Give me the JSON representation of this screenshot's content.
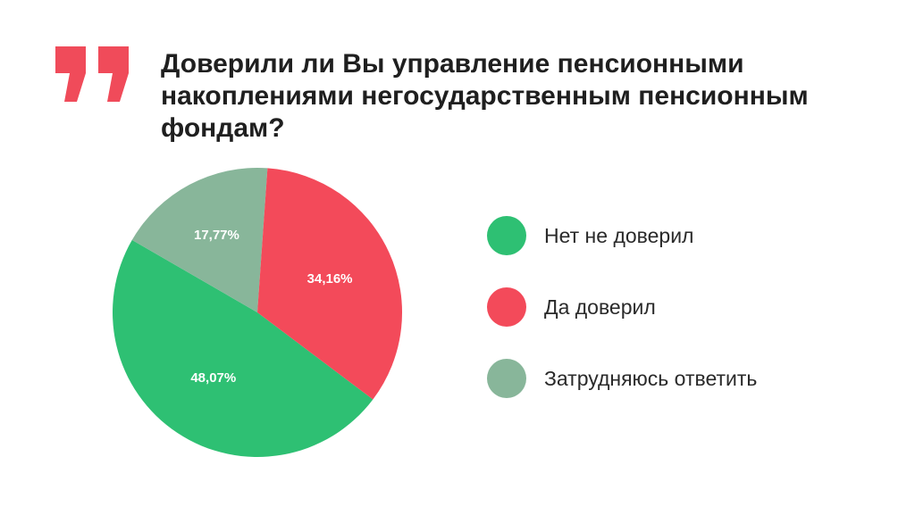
{
  "header": {
    "title": "Доверили ли Вы управление пенсионными накоплениями негосударственным пенсионным фондам?",
    "quote_icon": "double-quote-icon",
    "accent_color": "#f04b5a"
  },
  "chart_data": {
    "type": "pie",
    "title": "Доверили ли Вы управление пенсионными накоплениями негосударственным пенсионным фондам?",
    "legend_position": "right",
    "slices": [
      {
        "name": "Нет не доверил",
        "value": 48.07,
        "label": "48,07%",
        "color": "#2ec073"
      },
      {
        "name": "Да доверил",
        "value": 34.16,
        "label": "34,16%",
        "color": "#f34a5a"
      },
      {
        "name": "Затрудняюсь ответить",
        "value": 17.77,
        "label": "17,77%",
        "color": "#88b69a"
      }
    ]
  }
}
